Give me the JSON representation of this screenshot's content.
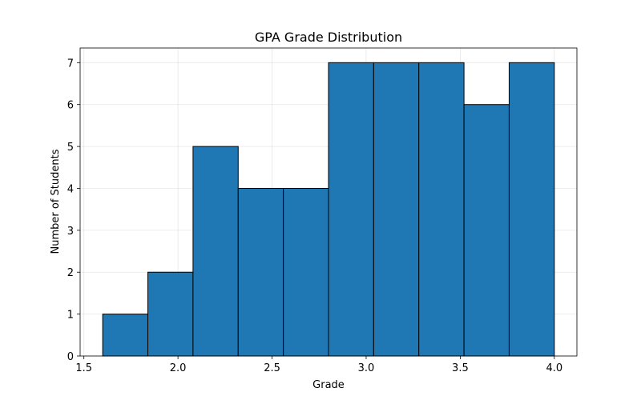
{
  "chart_data": {
    "type": "bar",
    "title": "GPA Grade Distribution",
    "xlabel": "Grade",
    "ylabel": "Number of Students",
    "bins": [
      {
        "start": 1.6,
        "end": 1.84,
        "count": 1
      },
      {
        "start": 1.84,
        "end": 2.08,
        "count": 2
      },
      {
        "start": 2.08,
        "end": 2.32,
        "count": 5
      },
      {
        "start": 2.32,
        "end": 2.56,
        "count": 4
      },
      {
        "start": 2.56,
        "end": 2.8,
        "count": 4
      },
      {
        "start": 2.8,
        "end": 3.04,
        "count": 7
      },
      {
        "start": 3.04,
        "end": 3.28,
        "count": 7
      },
      {
        "start": 3.28,
        "end": 3.52,
        "count": 7
      },
      {
        "start": 3.52,
        "end": 3.76,
        "count": 6
      },
      {
        "start": 3.76,
        "end": 4.0,
        "count": 7
      }
    ],
    "xlim": [
      1.48,
      4.12
    ],
    "ylim": [
      0,
      7.35
    ],
    "xticks": [
      1.5,
      2.0,
      2.5,
      3.0,
      3.5,
      4.0
    ],
    "xtick_labels": [
      "1.5",
      "2.0",
      "2.5",
      "3.0",
      "3.5",
      "4.0"
    ],
    "yticks": [
      0,
      1,
      2,
      3,
      4,
      5,
      6,
      7
    ],
    "ytick_labels": [
      "0",
      "1",
      "2",
      "3",
      "4",
      "5",
      "6",
      "7"
    ],
    "grid": true,
    "bar_color": "#1f77b4",
    "edge_color": "#000000"
  }
}
